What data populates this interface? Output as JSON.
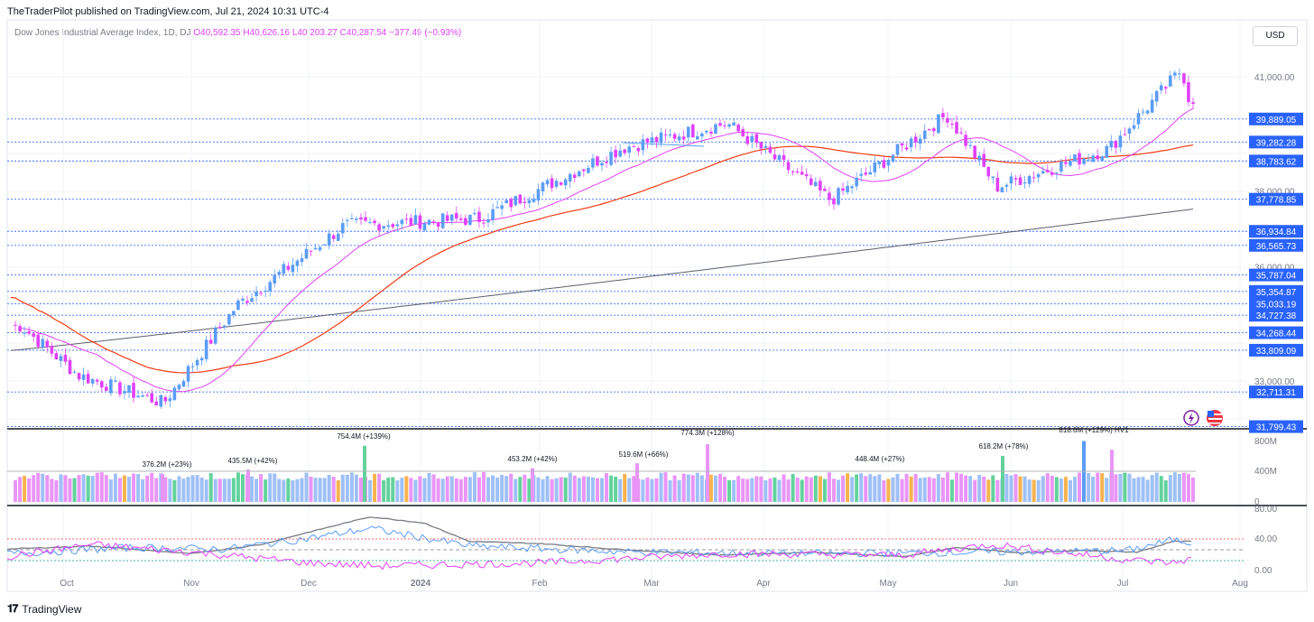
{
  "header": {
    "published_by": "TheTraderPilot published on TradingView.com, Jul 21, 2024 10:31 UTC-4"
  },
  "symbol": {
    "name": "Dow Jones Industrial Average Index, 1D, DJ",
    "open": "O40,592.35",
    "high": "H40,626.16",
    "low": "L40,203.27",
    "close": "C40,287.54",
    "change": "−377.49 (−0.93%)"
  },
  "currency_button": "USD",
  "price_axis": {
    "ticks": [
      "41,000.00",
      "38,000.00",
      "36,000.00",
      "33,000.00"
    ],
    "levels": [
      "39,889.05",
      "39,282.28",
      "38,783.62",
      "37,778.85",
      "36,934.84",
      "36,565.73",
      "35,787.04",
      "35,354.87",
      "35,033.19",
      "34,727.38",
      "34,268.44",
      "33,809.09",
      "32,711.31",
      "31,799.43"
    ]
  },
  "volume_axis": {
    "ticks": [
      "800M",
      "400M",
      "0"
    ]
  },
  "volume_labels": [
    "376.2M (+23%)",
    "435.5M (+42%)",
    "754.4M (+139%)",
    "453.2M (+42%)",
    "519.6M (+66%)",
    "774.3M (+128%)",
    "448.4M (+27%)",
    "618.2M (+78%)",
    "818.6M (+129%) HV1"
  ],
  "osc_axis": {
    "ticks": [
      "80.00",
      "40.00",
      "0.00"
    ]
  },
  "time_axis": [
    "Oct",
    "Nov",
    "Dec",
    "2024",
    "Feb",
    "Mar",
    "Apr",
    "May",
    "Jun",
    "Jul",
    "Aug"
  ],
  "footer": {
    "brand": "TradingView"
  },
  "colors": {
    "up": "#5b9cf6",
    "down": "#e040fb",
    "sma_fast": "#e040fb",
    "sma_mid": "#f23c15",
    "sma_slow": "#5d606b",
    "level_line": "#2962ff",
    "label_bg": "#2962ff"
  },
  "icons": [
    "lightning-icon",
    "us-flag-icon"
  ],
  "chart_data": {
    "type": "candlestick",
    "title": "Dow Jones Industrial Average Index, 1D, DJ",
    "x_range": [
      "Sep 2023",
      "Aug 2024"
    ],
    "y_range": [
      31500,
      41500
    ],
    "last": {
      "open": 40592.35,
      "high": 40626.16,
      "low": 40203.27,
      "close": 40287.54,
      "change": -377.49,
      "change_pct": -0.93
    },
    "approx_close_path": [
      {
        "date": "2023-09-20",
        "close": 34450
      },
      {
        "date": "2023-10-05",
        "close": 33150
      },
      {
        "date": "2023-10-27",
        "close": 32420
      },
      {
        "date": "2023-11-15",
        "close": 34990
      },
      {
        "date": "2023-12-13",
        "close": 37090
      },
      {
        "date": "2024-01-17",
        "close": 37270
      },
      {
        "date": "2024-02-23",
        "close": 39130
      },
      {
        "date": "2024-03-21",
        "close": 39780
      },
      {
        "date": "2024-04-17",
        "close": 37750
      },
      {
        "date": "2024-05-17",
        "close": 40000
      },
      {
        "date": "2024-05-30",
        "close": 38100
      },
      {
        "date": "2024-06-28",
        "close": 39110
      },
      {
        "date": "2024-07-17",
        "close": 41200
      },
      {
        "date": "2024-07-19",
        "close": 40287.54
      }
    ],
    "grid": true
  }
}
